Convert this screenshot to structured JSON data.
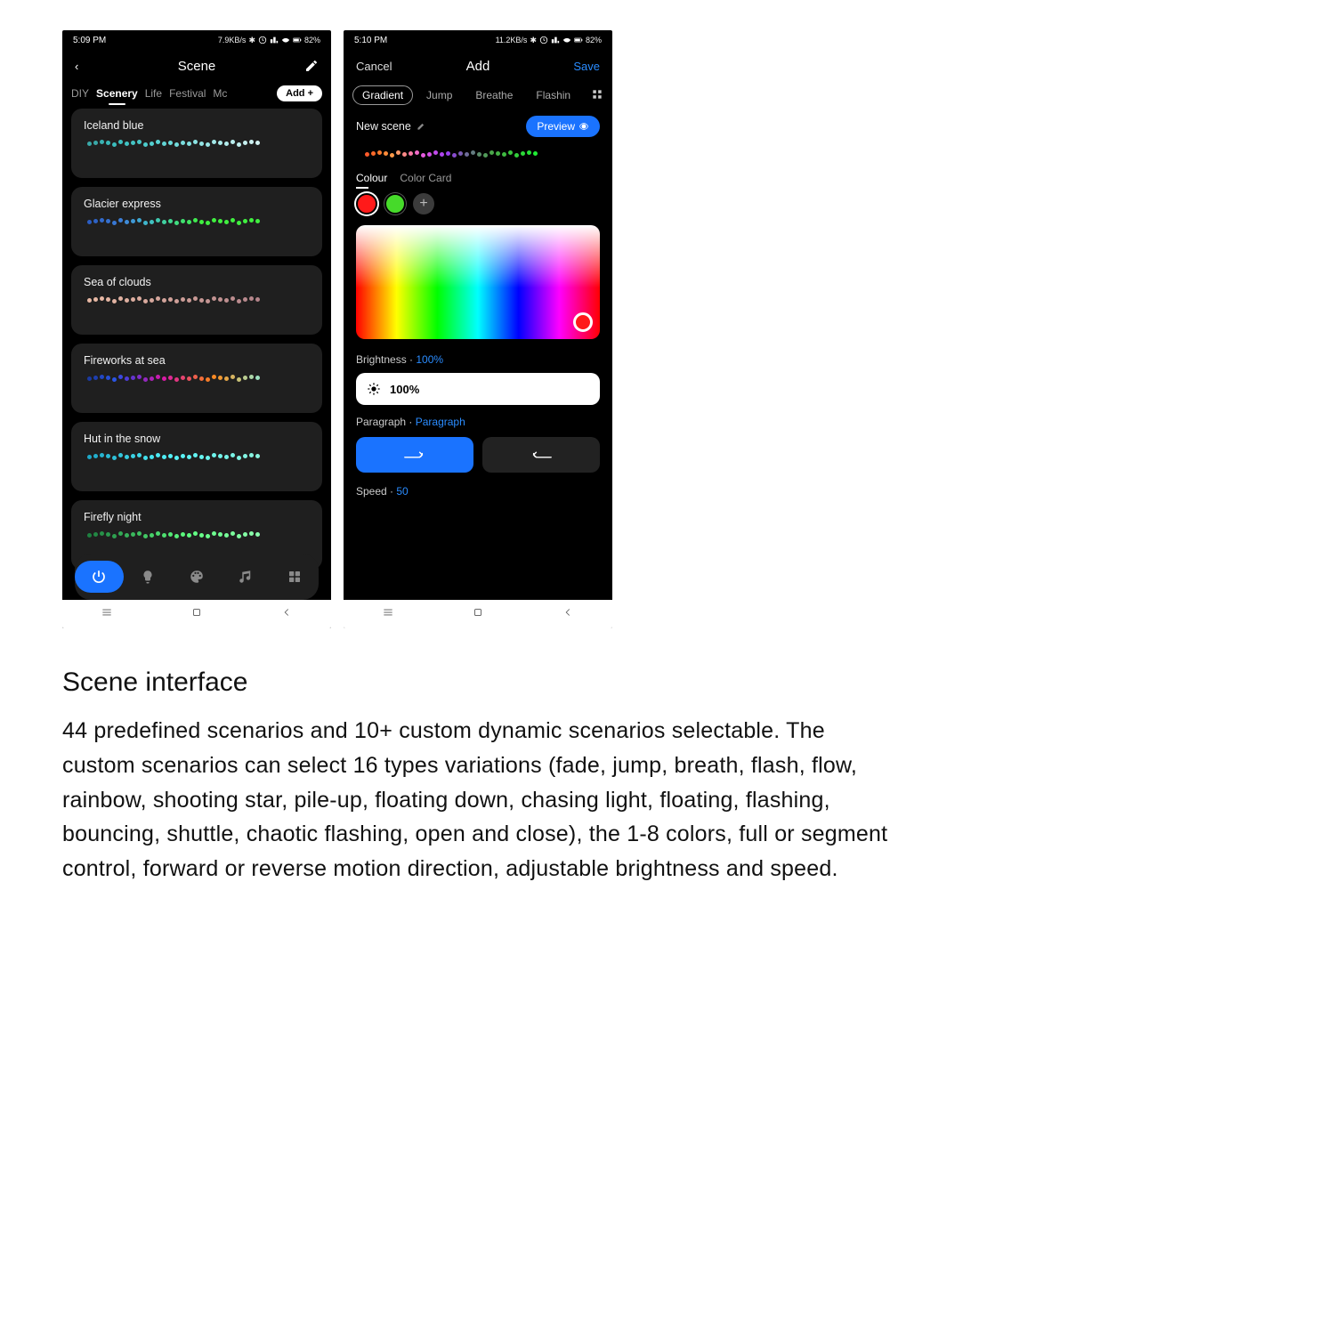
{
  "caption": {
    "title": "Scene interface",
    "body": "44 predefined scenarios and 10+ custom dynamic scenarios selectable. The custom scenarios can select 16 types variations (fade, jump, breath, flash, flow, rainbow, shooting star, pile-up, floating down, chasing light, floating, flashing, bouncing, shuttle, chaotic flashing, open and close), the 1-8 colors, full or segment control, forward or reverse motion direction, adjustable brightness and speed.",
    "title_fontsize": 30,
    "body_fontsize": 25,
    "text_color": "#111111"
  },
  "accent_blue": "#1a73ff",
  "link_blue": "#2a8cff",
  "card_bg": "#1f1f1f",
  "phone_bg": "#000000",
  "muted_text": "#9a9a9a",
  "scene_screen": {
    "status": {
      "time": "5:09 PM",
      "net": "7.9KB/s",
      "battery": "82%"
    },
    "title": "Scene",
    "tabs": [
      "DIY",
      "Scenery",
      "Life",
      "Festival",
      "Mc"
    ],
    "active_tab_index": 1,
    "add_label": "Add +",
    "scenes": [
      {
        "name": "Iceland blue",
        "dots": [
          "#3aa8a8",
          "#3aa8a8",
          "#39b2b2",
          "#39b8b8",
          "#3bbcbc",
          "#3dc0c0",
          "#40c2c2",
          "#44c4c4",
          "#48c6c6",
          "#4ccccc",
          "#52d0d0",
          "#5ad4d4",
          "#62d6d6",
          "#6adada",
          "#72dcdc",
          "#7adede",
          "#82e0e0",
          "#8ae2e2",
          "#92e4e4",
          "#9ae6e6",
          "#a2e8e8",
          "#aaeaea",
          "#b2ecec",
          "#baeeee",
          "#c0efef",
          "#c6f0f0",
          "#ccf1f1",
          "#d2f2f2"
        ]
      },
      {
        "name": "Glacier express",
        "dots": [
          "#2b5dc2",
          "#2e63c6",
          "#326acb",
          "#3570cf",
          "#3877d3",
          "#3c7ed7",
          "#3f8bd8",
          "#3f99d6",
          "#3fa7d2",
          "#3fb5cc",
          "#40c1c1",
          "#40c9b0",
          "#40d0a0",
          "#40d790",
          "#40dd80",
          "#40e270",
          "#40e760",
          "#40ec50",
          "#40f040",
          "#40f040",
          "#40f040",
          "#40f040",
          "#40f040",
          "#40f040",
          "#40f040",
          "#40f040",
          "#40f040",
          "#40f040"
        ]
      },
      {
        "name": "Sea of clouds",
        "dots": [
          "#e7b8a4",
          "#e7b8a4",
          "#e6b7a4",
          "#e4b5a3",
          "#e2b3a2",
          "#e0b1a1",
          "#deafa0",
          "#dcad9f",
          "#daab9e",
          "#d8a99d",
          "#d6a79c",
          "#d4a59b",
          "#d2a39a",
          "#d0a199",
          "#ce9f98",
          "#cc9d97",
          "#ca9b96",
          "#c89995",
          "#c69794",
          "#c49593",
          "#c29392",
          "#c09191",
          "#be8f90",
          "#bc8d8f",
          "#ba8b8e",
          "#b8898d",
          "#b6878c",
          "#b4858b"
        ]
      },
      {
        "name": "Fireworks at sea",
        "dots": [
          "#1b3aa0",
          "#1e3fb0",
          "#2247c4",
          "#254ed6",
          "#2a55e6",
          "#3b48e0",
          "#4e3cd8",
          "#6534d0",
          "#7d2ec8",
          "#9528c0",
          "#ad22b8",
          "#c51cb0",
          "#da1aa6",
          "#de2894",
          "#e23682",
          "#e64470",
          "#ea525e",
          "#ee604c",
          "#f26e3a",
          "#f67c28",
          "#f88a24",
          "#f09832",
          "#e4a648",
          "#d6b460",
          "#c8c278",
          "#bacc90",
          "#acd6a8",
          "#9ee0c0"
        ]
      },
      {
        "name": "Hut in the snow",
        "dots": [
          "#1ea8c8",
          "#22aecc",
          "#26b4d0",
          "#2abad4",
          "#2ec0d8",
          "#32c6dc",
          "#36cce0",
          "#3ad2e4",
          "#3ed8e8",
          "#42deec",
          "#46e4f0",
          "#4ae8f2",
          "#4eecf4",
          "#52f0f6",
          "#56f2f6",
          "#5af4f6",
          "#5ef4f4",
          "#62f4f2",
          "#66f4f0",
          "#6af4ee",
          "#6ef4ec",
          "#72f4ea",
          "#76f4e8",
          "#7af4e6",
          "#7ef4e4",
          "#82f4e2",
          "#86f4e0",
          "#8af4de"
        ]
      },
      {
        "name": "Firefly night",
        "dots": [
          "#1e8040",
          "#228844",
          "#269048",
          "#2a984c",
          "#2ea050",
          "#32a854",
          "#36b058",
          "#3ab85c",
          "#3ec060",
          "#42c864",
          "#46d068",
          "#4ad86c",
          "#4ee070",
          "#52e874",
          "#56f078",
          "#5af87c",
          "#5eff80",
          "#62ff84",
          "#66ff88",
          "#6aff8c",
          "#6eff90",
          "#72ff94",
          "#76ff98",
          "#7aff9c",
          "#7effa0",
          "#82ffa4",
          "#86ffa8",
          "#8affac"
        ]
      }
    ],
    "bottom_nav_icons": [
      "power",
      "bulb",
      "palette",
      "music",
      "grid"
    ]
  },
  "add_screen": {
    "status": {
      "time": "5:10 PM",
      "net": "11.2KB/s",
      "battery": "82%"
    },
    "cancel_label": "Cancel",
    "title": "Add",
    "save_label": "Save",
    "chips": [
      "Gradient",
      "Jump",
      "Breathe",
      "Flashin"
    ],
    "active_chip_index": 0,
    "new_scene_label": "New scene",
    "preview_label": "Preview",
    "preview_dots": [
      "#ff5a2a",
      "#ff6a2a",
      "#ff7a2e",
      "#ff8a38",
      "#ff9a48",
      "#ff9a68",
      "#ff8a88",
      "#fa7aa8",
      "#f26ac8",
      "#e65ae0",
      "#d650e8",
      "#c24aec",
      "#ae44ee",
      "#9a40ee",
      "#884cce",
      "#7a5cb2",
      "#6e6c98",
      "#647c80",
      "#5a8c6a",
      "#509a58",
      "#4aa64a",
      "#44b044",
      "#3eba40",
      "#38c43c",
      "#32ce3a",
      "#2cd838",
      "#26e236",
      "#20ec34"
    ],
    "color_tabs": [
      "Colour",
      "Color Card"
    ],
    "active_color_tab": 0,
    "swatches": [
      "#ff1a1a",
      "#46da2a"
    ],
    "selected_swatch_index": 0,
    "picker_thumb_color": "#ff1a1a",
    "brightness_label": "Brightness",
    "brightness_value": "100%",
    "slider_value": "100%",
    "paragraph_label": "Paragraph",
    "paragraph_value": "Paragraph",
    "segment_value": "2",
    "speed_label": "Speed",
    "speed_value": "50"
  }
}
